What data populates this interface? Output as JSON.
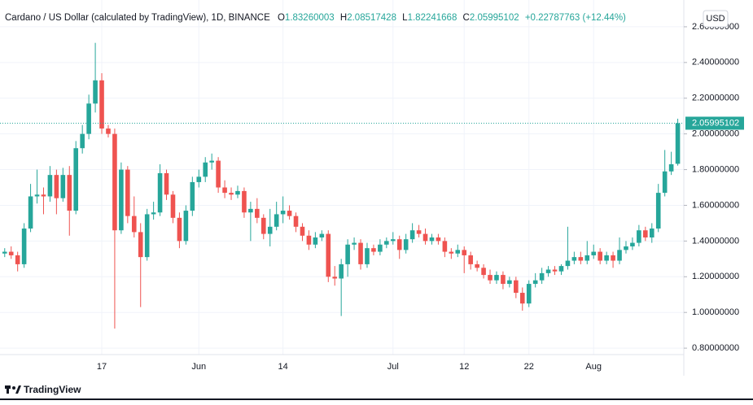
{
  "chart_data": {
    "type": "candlestick",
    "title": "Cardano / US Dollar (calculated by TradingView), 1D, BINANCE",
    "ohlc_labels": [
      "O",
      "H",
      "L",
      "C"
    ],
    "change": "+0.22787763 (+12.44%)",
    "currency": "USD",
    "up_color": "#26a69a",
    "down_color": "#ef5350",
    "grid": true,
    "categories": [
      null,
      null,
      null,
      null,
      null,
      null,
      null,
      null,
      null,
      null,
      null,
      null,
      null,
      null,
      null,
      "17",
      null,
      null,
      null,
      null,
      null,
      null,
      null,
      null,
      null,
      null,
      null,
      null,
      null,
      null,
      "Jun",
      null,
      null,
      null,
      null,
      null,
      null,
      null,
      null,
      null,
      null,
      null,
      null,
      "14",
      null,
      null,
      null,
      null,
      null,
      null,
      null,
      null,
      null,
      null,
      null,
      null,
      null,
      null,
      null,
      null,
      "Jul",
      null,
      null,
      null,
      null,
      null,
      null,
      null,
      null,
      null,
      null,
      "12",
      null,
      null,
      null,
      null,
      null,
      null,
      null,
      null,
      null,
      "22",
      null,
      null,
      null,
      null,
      null,
      null,
      null,
      null,
      null,
      "Aug",
      null,
      null,
      null,
      null,
      null,
      null,
      null,
      null,
      null,
      null,
      null,
      null,
      null
    ],
    "open": [
      1.33,
      1.34,
      1.32,
      1.27,
      1.47,
      1.65,
      1.66,
      1.65,
      1.77,
      1.64,
      1.77,
      1.57,
      1.92,
      2.0,
      2.17,
      2.3,
      2.03,
      2.0,
      1.46,
      1.8,
      1.54,
      1.45,
      1.31,
      1.55,
      1.56,
      1.78,
      1.66,
      1.53,
      1.4,
      1.57,
      1.73,
      1.76,
      1.84,
      1.85,
      1.7,
      1.67,
      1.66,
      1.68,
      1.56,
      1.58,
      1.53,
      1.44,
      1.48,
      1.55,
      1.57,
      1.54,
      1.48,
      1.43,
      1.38,
      1.42,
      1.44,
      1.2,
      1.19,
      1.27,
      1.38,
      1.39,
      1.27,
      1.36,
      1.34,
      1.38,
      1.4,
      1.41,
      1.35,
      1.41,
      1.46,
      1.44,
      1.4,
      1.42,
      1.4,
      1.34,
      1.33,
      1.35,
      1.32,
      1.27,
      1.25,
      1.21,
      1.18,
      1.21,
      1.16,
      1.18,
      1.11,
      1.05,
      1.16,
      1.18,
      1.22,
      1.24,
      1.23,
      1.26,
      1.29,
      1.31,
      1.29,
      1.32,
      1.34,
      1.29,
      1.32,
      1.29,
      1.35,
      1.37,
      1.39,
      1.46,
      1.42,
      1.47,
      1.67,
      1.79,
      1.83260003
    ],
    "high": [
      1.36,
      1.37,
      1.34,
      1.5,
      1.72,
      1.8,
      1.7,
      1.82,
      1.8,
      1.81,
      1.82,
      1.96,
      2.05,
      2.22,
      2.51,
      2.34,
      2.05,
      2.03,
      1.84,
      1.82,
      1.65,
      1.5,
      1.58,
      1.62,
      1.83,
      1.8,
      1.68,
      1.56,
      1.6,
      1.76,
      1.8,
      1.87,
      1.89,
      1.87,
      1.74,
      1.7,
      1.71,
      1.7,
      1.62,
      1.64,
      1.55,
      1.58,
      1.62,
      1.65,
      1.6,
      1.56,
      1.5,
      1.46,
      1.45,
      1.46,
      1.46,
      1.26,
      1.3,
      1.41,
      1.42,
      1.41,
      1.39,
      1.38,
      1.41,
      1.42,
      1.45,
      1.43,
      1.44,
      1.5,
      1.49,
      1.47,
      1.44,
      1.44,
      1.42,
      1.36,
      1.38,
      1.37,
      1.34,
      1.29,
      1.27,
      1.24,
      1.23,
      1.23,
      1.2,
      1.2,
      1.14,
      1.18,
      1.22,
      1.25,
      1.26,
      1.26,
      1.27,
      1.48,
      1.34,
      1.34,
      1.4,
      1.38,
      1.36,
      1.34,
      1.34,
      1.42,
      1.4,
      1.42,
      1.49,
      1.48,
      1.5,
      1.72,
      1.91,
      1.9,
      2.08517428
    ],
    "low": [
      1.31,
      1.3,
      1.23,
      1.25,
      1.45,
      1.61,
      1.55,
      1.62,
      1.55,
      1.62,
      1.43,
      1.55,
      1.89,
      1.97,
      2.12,
      2.0,
      1.98,
      0.91,
      1.44,
      1.5,
      1.42,
      1.03,
      1.29,
      1.52,
      1.54,
      1.63,
      1.5,
      1.36,
      1.38,
      1.54,
      1.7,
      1.73,
      1.8,
      1.67,
      1.64,
      1.63,
      1.64,
      1.53,
      1.4,
      1.5,
      1.41,
      1.37,
      1.46,
      1.5,
      1.52,
      1.45,
      1.4,
      1.35,
      1.36,
      1.4,
      1.17,
      1.15,
      0.98,
      1.2,
      1.35,
      1.24,
      1.25,
      1.32,
      1.32,
      1.36,
      1.38,
      1.3,
      1.33,
      1.39,
      1.42,
      1.38,
      1.38,
      1.38,
      1.31,
      1.3,
      1.31,
      1.22,
      1.24,
      1.23,
      1.19,
      1.16,
      1.16,
      1.13,
      1.14,
      1.08,
      1.01,
      1.03,
      1.14,
      1.16,
      1.2,
      1.21,
      1.21,
      1.24,
      1.27,
      1.27,
      1.27,
      1.3,
      1.27,
      1.27,
      1.25,
      1.27,
      1.33,
      1.35,
      1.37,
      1.4,
      1.39,
      1.45,
      1.65,
      1.77,
      1.82241668
    ],
    "close": [
      1.34,
      1.32,
      1.27,
      1.47,
      1.65,
      1.66,
      1.65,
      1.77,
      1.64,
      1.77,
      1.57,
      1.92,
      2.0,
      2.17,
      2.3,
      2.03,
      2.0,
      1.46,
      1.8,
      1.54,
      1.45,
      1.31,
      1.55,
      1.56,
      1.78,
      1.66,
      1.53,
      1.4,
      1.57,
      1.73,
      1.76,
      1.84,
      1.85,
      1.7,
      1.67,
      1.66,
      1.68,
      1.56,
      1.58,
      1.53,
      1.44,
      1.48,
      1.55,
      1.57,
      1.54,
      1.48,
      1.43,
      1.38,
      1.42,
      1.44,
      1.2,
      1.19,
      1.27,
      1.38,
      1.39,
      1.27,
      1.36,
      1.34,
      1.38,
      1.4,
      1.41,
      1.35,
      1.41,
      1.46,
      1.44,
      1.4,
      1.42,
      1.4,
      1.34,
      1.33,
      1.35,
      1.32,
      1.27,
      1.25,
      1.21,
      1.18,
      1.21,
      1.16,
      1.18,
      1.11,
      1.05,
      1.16,
      1.18,
      1.22,
      1.24,
      1.23,
      1.26,
      1.29,
      1.31,
      1.29,
      1.32,
      1.34,
      1.29,
      1.32,
      1.29,
      1.35,
      1.37,
      1.39,
      1.46,
      1.42,
      1.47,
      1.67,
      1.79,
      1.83,
      2.05995102
    ],
    "ylim": [
      0.764,
      2.75
    ],
    "yticks": [
      {
        "value": 0.8,
        "label": "0.80000000"
      },
      {
        "value": 1.0,
        "label": "1.00000000"
      },
      {
        "value": 1.2,
        "label": "1.20000000"
      },
      {
        "value": 1.4,
        "label": "1.40000000"
      },
      {
        "value": 1.6,
        "label": "1.60000000"
      },
      {
        "value": 1.8,
        "label": "1.80000000"
      },
      {
        "value": 2.0,
        "label": "2.00000000"
      },
      {
        "value": 2.2,
        "label": "2.20000000"
      },
      {
        "value": 2.4,
        "label": "2.40000000"
      },
      {
        "value": 2.6,
        "label": "2.60000000"
      }
    ]
  },
  "footer": {
    "brand": "TradingView"
  }
}
